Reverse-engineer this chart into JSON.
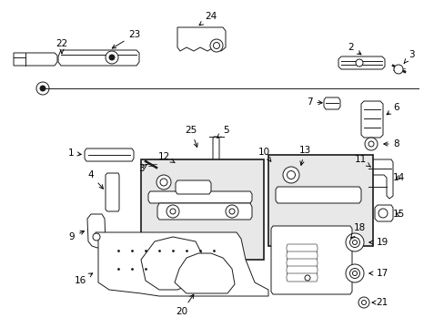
{
  "bg_color": "#ffffff",
  "fig_width": 4.89,
  "fig_height": 3.6,
  "dpi": 100,
  "line_color": "#1a1a1a",
  "box_fill": "#e8e8e8",
  "lw": 0.7
}
